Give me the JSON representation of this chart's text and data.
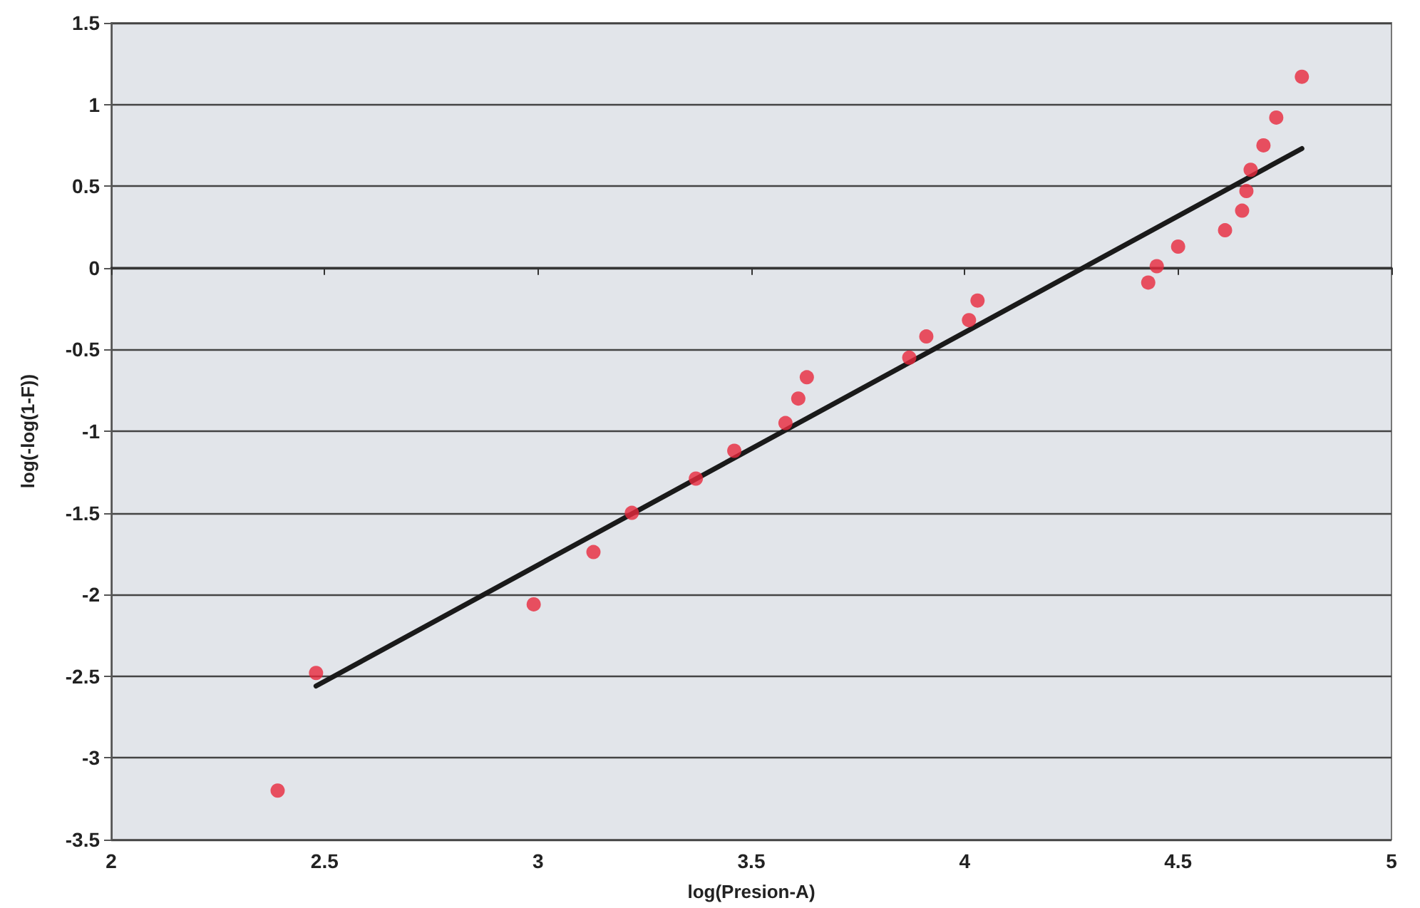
{
  "chart_data": {
    "type": "scatter",
    "xlabel": "log(Presion-A)",
    "ylabel": "log(-log(1-F))",
    "xlim": [
      2,
      5
    ],
    "xticks": [
      2,
      2.5,
      3,
      3.5,
      4,
      4.5,
      5
    ],
    "ylim": [
      -3.5,
      1.5
    ],
    "yticks": [
      -3.5,
      -3,
      -2.5,
      -2,
      -1.5,
      -1,
      -0.5,
      0,
      0.5,
      1,
      1.5
    ],
    "grid": "y",
    "series": [
      {
        "marker": "circle",
        "color": "#e8283c",
        "x": [
          2.39,
          2.48,
          2.99,
          3.13,
          3.22,
          3.37,
          3.46,
          3.58,
          3.61,
          3.63,
          3.87,
          3.91,
          4.01,
          4.03,
          4.43,
          4.45,
          4.5,
          4.61,
          4.65,
          4.66,
          4.67,
          4.7,
          4.73,
          4.79
        ],
        "values": [
          -3.2,
          -2.48,
          -2.06,
          -1.74,
          -1.5,
          -1.29,
          -1.12,
          -0.95,
          -0.8,
          -0.67,
          -0.55,
          -0.42,
          -0.32,
          -0.2,
          -0.09,
          0.01,
          0.13,
          0.23,
          0.35,
          0.47,
          0.6,
          0.75,
          0.92,
          1.17
        ]
      },
      {
        "type": "line",
        "marker": "none",
        "color": "#1a1a1a",
        "x": [
          2.48,
          4.79
        ],
        "values": [
          -2.56,
          0.73
        ]
      }
    ]
  }
}
